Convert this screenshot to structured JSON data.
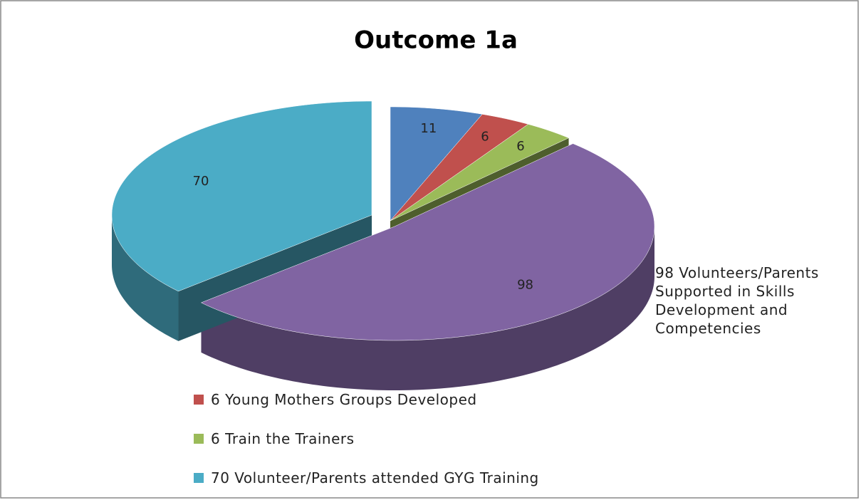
{
  "chart_data": {
    "type": "pie3d",
    "title": "Outcome 1a",
    "categories": [
      null,
      "6 Young Mothers Groups Developed",
      "6 Train the Trainers",
      "98 Volunteers/Parents Supported in Skills Development and Competencies",
      "70 Volunteer/Parents attended GYG Training"
    ],
    "values": [
      11,
      6,
      6,
      98,
      70
    ],
    "colors": [
      "#4f81bd",
      "#c0504d",
      "#9bbb59",
      "#8064a2",
      "#4bacc6"
    ]
  }
}
